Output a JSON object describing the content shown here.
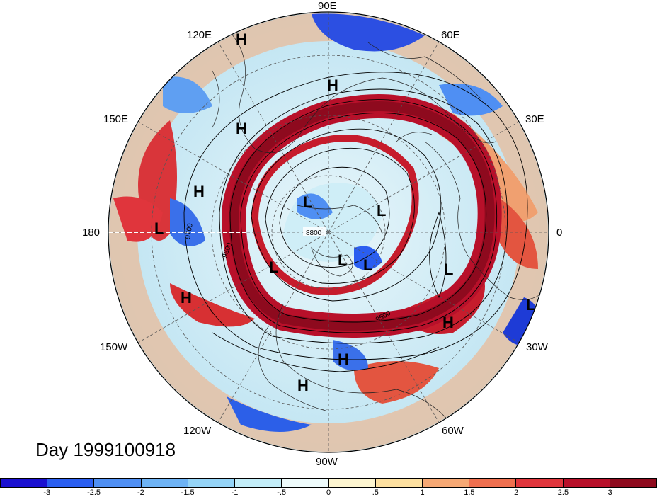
{
  "day_label": "Day 1999100918",
  "longitude_labels": {
    "lon_90e": "90E",
    "lon_120e": "120E",
    "lon_60e": "60E",
    "lon_150e": "150E",
    "lon_30e": "30E",
    "lon_180": "180",
    "lon_0": "0",
    "lon_150w": "150W",
    "lon_30w": "30W",
    "lon_120w": "120W",
    "lon_60w": "60W",
    "lon_90w": "90W"
  },
  "contour_labels": [
    "8800",
    "9600",
    "9500",
    "9700"
  ],
  "pressure_centers": [
    {
      "type": "H"
    },
    {
      "type": "H"
    },
    {
      "type": "H"
    },
    {
      "type": "L"
    },
    {
      "type": "H"
    },
    {
      "type": "L"
    },
    {
      "type": "L"
    },
    {
      "type": "L"
    },
    {
      "type": "L"
    },
    {
      "type": "L"
    },
    {
      "type": "L"
    },
    {
      "type": "H"
    },
    {
      "type": "L"
    },
    {
      "type": "H"
    },
    {
      "type": "H"
    },
    {
      "type": "H"
    }
  ],
  "colorbar": {
    "ticks": [
      "-3",
      "-2.5",
      "-2",
      "-1.5",
      "-1",
      "-.5",
      "0",
      ".5",
      "1",
      "1.5",
      "2",
      "2.5",
      "3"
    ],
    "colors": [
      "#1a10d0",
      "#2a5ef0",
      "#4f8ff3",
      "#6eb3f5",
      "#95d4f7",
      "#c3edf8",
      "#eefbfb",
      "#fdf5d0",
      "#fde0a0",
      "#f6a874",
      "#ef6f4f",
      "#e0353c",
      "#b8102a",
      "#8e0a1e"
    ]
  },
  "colors": {
    "coast": "#222222",
    "contour": "#000000",
    "grid": "#555555"
  }
}
